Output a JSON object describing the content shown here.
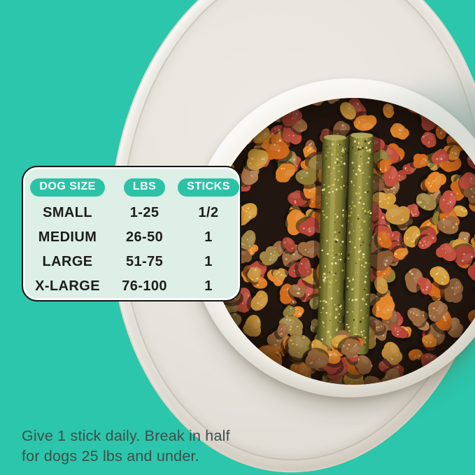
{
  "background_color": "#2bc6ab",
  "dosing_card": {
    "headers": [
      "DOG SIZE",
      "LBS",
      "STICKS"
    ],
    "rows": [
      {
        "size": "SMALL",
        "lbs": "1-25",
        "sticks": "1/2"
      },
      {
        "size": "MEDIUM",
        "lbs": "26-50",
        "sticks": "1"
      },
      {
        "size": "LARGE",
        "lbs": "51-75",
        "sticks": "1"
      },
      {
        "size": "X-LARGE",
        "lbs": "76-100",
        "sticks": "1"
      }
    ],
    "card_bg": "#ddefe6",
    "border_color": "#161616",
    "pill_color": "#2cc2a7",
    "pill_text_color": "#ffffff",
    "text_color": "#1d1d1d"
  },
  "caption": {
    "line1": "Give 1 stick daily. Break in half",
    "line2": "for dogs 25 lbs and under.",
    "color": "#3f4e4a"
  },
  "photo": {
    "plate_color": "#e6e3dc",
    "plate_shadow_color": "#83a099",
    "bowl_rim_color": "#f5f3ec",
    "kibble_background": "#211710",
    "kibble_palette": [
      "#e1862b",
      "#e1862b",
      "#d97e24",
      "#cf6a1e",
      "#cf6a1e",
      "#c2503e",
      "#c2503e",
      "#b8473a",
      "#ad4434",
      "#9d6b3f",
      "#9d6b3f",
      "#8a5a35",
      "#d29c3c",
      "#d29c3c",
      "#c8933e",
      "#a08444",
      "#8f7b35",
      "#b5804f"
    ],
    "kibble_speckle_color": "#ffedbe",
    "stick_colors": {
      "dark": "#3f3f18",
      "mid": "#7d7a33",
      "light": "#9a9343",
      "cap": "#b3ab5e",
      "seam": "#26260e",
      "flecks": [
        "#efe793",
        "#d8ca5e",
        "#b7ae4e",
        "#2e2e10",
        "#fff8c0"
      ]
    }
  }
}
